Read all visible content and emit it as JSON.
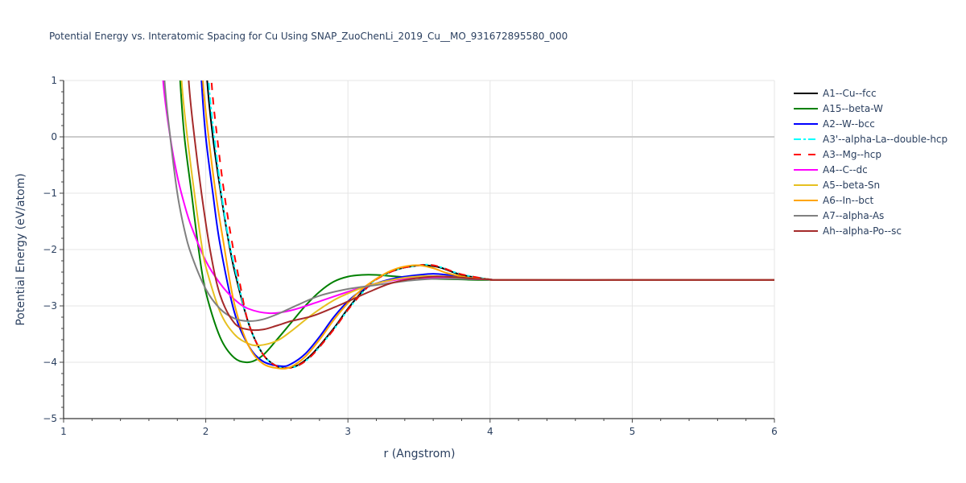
{
  "title": "Potential Energy vs. Interatomic Spacing for Cu Using SNAP_ZuoChenLi_2019_Cu__MO_931672895580_000",
  "chart_data": {
    "type": "line",
    "title": "Potential Energy vs. Interatomic Spacing for Cu Using SNAP_ZuoChenLi_2019_Cu__MO_931672895580_000",
    "xlabel": "r (Angstrom)",
    "ylabel": "Potential Energy (eV/atom)",
    "xlim": [
      1,
      6
    ],
    "ylim": [
      -5,
      1
    ],
    "xticks": [
      "1",
      "2",
      "3",
      "4",
      "5",
      "6"
    ],
    "yticks": [
      "1",
      "0",
      "−1",
      "−2",
      "−3",
      "−4",
      "−5"
    ],
    "grid": true,
    "legend_position": "right",
    "series": [
      {
        "name": "A1--Cu--fcc",
        "color": "#000000",
        "dash": "solid",
        "x": [
          2.01,
          2.05,
          2.1,
          2.15,
          2.2,
          2.3,
          2.4,
          2.5,
          2.57,
          2.65,
          2.75,
          2.9,
          3.0,
          3.1,
          3.2,
          3.35,
          3.5,
          3.55,
          3.65,
          3.8,
          4.0,
          4.1,
          5.0,
          6.0
        ],
        "y": [
          1.0,
          0.0,
          -0.9,
          -1.7,
          -2.35,
          -3.3,
          -3.85,
          -4.07,
          -4.1,
          -4.05,
          -3.85,
          -3.4,
          -3.05,
          -2.75,
          -2.52,
          -2.35,
          -2.28,
          -2.28,
          -2.32,
          -2.45,
          -2.53,
          -2.54,
          -2.54,
          -2.54
        ]
      },
      {
        "name": "A15--beta-W",
        "color": "#008000",
        "dash": "solid",
        "x": [
          1.82,
          1.85,
          1.9,
          1.95,
          2.0,
          2.1,
          2.2,
          2.3,
          2.4,
          2.5,
          2.6,
          2.7,
          2.8,
          2.9,
          3.0,
          3.1,
          3.2,
          3.3,
          3.45,
          3.6,
          3.8,
          4.0,
          5.0,
          6.0
        ],
        "y": [
          1.0,
          0.0,
          -1.0,
          -2.0,
          -2.75,
          -3.55,
          -3.92,
          -4.0,
          -3.88,
          -3.6,
          -3.3,
          -3.0,
          -2.75,
          -2.57,
          -2.48,
          -2.45,
          -2.45,
          -2.47,
          -2.5,
          -2.52,
          -2.53,
          -2.54,
          -2.54,
          -2.54
        ]
      },
      {
        "name": "A2--W--bcc",
        "color": "#0000ff",
        "dash": "solid",
        "x": [
          1.97,
          2.0,
          2.05,
          2.1,
          2.2,
          2.3,
          2.4,
          2.53,
          2.6,
          2.7,
          2.8,
          2.9,
          3.0,
          3.1,
          3.2,
          3.35,
          3.5,
          3.6,
          3.7,
          3.85,
          4.0,
          4.1,
          5.0,
          6.0
        ],
        "y": [
          1.0,
          0.0,
          -1.0,
          -1.9,
          -3.1,
          -3.7,
          -3.98,
          -4.07,
          -4.03,
          -3.85,
          -3.55,
          -3.2,
          -2.92,
          -2.72,
          -2.6,
          -2.5,
          -2.45,
          -2.43,
          -2.45,
          -2.5,
          -2.53,
          -2.54,
          -2.54,
          -2.54
        ]
      },
      {
        "name": "A3'--alpha-La--double-hcp",
        "color": "#00ffff",
        "dash": "dashdot",
        "x": [
          2.02,
          2.06,
          2.11,
          2.16,
          2.22,
          2.3,
          2.4,
          2.5,
          2.57,
          2.65,
          2.75,
          2.9,
          3.0,
          3.1,
          3.2,
          3.35,
          3.5,
          3.57,
          3.65,
          3.8,
          4.0,
          4.1,
          5.0,
          6.0
        ],
        "y": [
          1.0,
          0.0,
          -1.0,
          -1.8,
          -2.5,
          -3.3,
          -3.85,
          -4.07,
          -4.1,
          -4.06,
          -3.87,
          -3.42,
          -3.07,
          -2.77,
          -2.53,
          -2.35,
          -2.28,
          -2.27,
          -2.31,
          -2.44,
          -2.53,
          -2.54,
          -2.54,
          -2.54
        ]
      },
      {
        "name": "A3--Mg--hcp",
        "color": "#ff0000",
        "dash": "dash",
        "x": [
          2.04,
          2.08,
          2.13,
          2.18,
          2.24,
          2.3,
          2.4,
          2.5,
          2.58,
          2.65,
          2.75,
          2.9,
          3.0,
          3.1,
          3.2,
          3.35,
          3.5,
          3.57,
          3.65,
          3.8,
          4.0,
          4.1,
          5.0,
          6.0
        ],
        "y": [
          1.0,
          0.0,
          -1.0,
          -1.8,
          -2.6,
          -3.3,
          -3.85,
          -4.07,
          -4.1,
          -4.06,
          -3.87,
          -3.42,
          -3.07,
          -2.77,
          -2.53,
          -2.35,
          -2.28,
          -2.27,
          -2.31,
          -2.44,
          -2.53,
          -2.54,
          -2.54,
          -2.54
        ]
      },
      {
        "name": "A4--C--dc",
        "color": "#ff00ff",
        "dash": "solid",
        "x": [
          1.7,
          1.75,
          1.8,
          1.85,
          1.9,
          2.0,
          2.1,
          2.2,
          2.3,
          2.45,
          2.6,
          2.8,
          3.0,
          3.2,
          3.4,
          3.6,
          3.8,
          4.0,
          4.1,
          5.0,
          6.0
        ],
        "y": [
          1.0,
          0.0,
          -0.7,
          -1.2,
          -1.6,
          -2.2,
          -2.6,
          -2.88,
          -3.05,
          -3.13,
          -3.08,
          -2.92,
          -2.75,
          -2.6,
          -2.52,
          -2.5,
          -2.52,
          -2.53,
          -2.54,
          -2.54,
          -2.54
        ]
      },
      {
        "name": "A5--beta-Sn",
        "color": "#e6c020",
        "dash": "solid",
        "x": [
          1.83,
          1.87,
          1.92,
          1.97,
          2.0,
          2.1,
          2.2,
          2.3,
          2.38,
          2.5,
          2.6,
          2.75,
          2.9,
          3.0,
          3.1,
          3.25,
          3.4,
          3.55,
          3.7,
          3.85,
          4.0,
          4.1,
          5.0,
          6.0
        ],
        "y": [
          1.0,
          0.0,
          -1.0,
          -1.9,
          -2.3,
          -3.1,
          -3.5,
          -3.67,
          -3.7,
          -3.62,
          -3.45,
          -3.15,
          -2.9,
          -2.78,
          -2.68,
          -2.57,
          -2.5,
          -2.47,
          -2.48,
          -2.51,
          -2.53,
          -2.54,
          -2.54,
          -2.54
        ]
      },
      {
        "name": "A6--In--bct",
        "color": "#ffa500",
        "dash": "solid",
        "x": [
          1.98,
          2.02,
          2.07,
          2.12,
          2.2,
          2.3,
          2.4,
          2.52,
          2.6,
          2.7,
          2.8,
          2.9,
          3.0,
          3.1,
          3.2,
          3.3,
          3.4,
          3.5,
          3.6,
          3.7,
          3.85,
          4.0,
          4.1,
          5.0,
          6.0
        ],
        "y": [
          1.0,
          0.0,
          -1.0,
          -1.8,
          -2.95,
          -3.7,
          -4.02,
          -4.11,
          -4.08,
          -3.9,
          -3.6,
          -3.25,
          -2.95,
          -2.7,
          -2.52,
          -2.38,
          -2.3,
          -2.28,
          -2.33,
          -2.42,
          -2.5,
          -2.53,
          -2.54,
          -2.54,
          -2.54
        ]
      },
      {
        "name": "A7--alpha-As",
        "color": "#808080",
        "dash": "solid",
        "x": [
          1.71,
          1.75,
          1.8,
          1.85,
          1.9,
          2.0,
          2.1,
          2.2,
          2.3,
          2.4,
          2.5,
          2.65,
          2.8,
          3.0,
          3.2,
          3.4,
          3.6,
          3.8,
          4.0,
          4.1,
          5.0,
          6.0
        ],
        "y": [
          1.0,
          0.0,
          -1.0,
          -1.65,
          -2.1,
          -2.7,
          -3.05,
          -3.22,
          -3.27,
          -3.24,
          -3.15,
          -2.98,
          -2.82,
          -2.7,
          -2.63,
          -2.56,
          -2.52,
          -2.52,
          -2.53,
          -2.54,
          -2.54,
          -2.54
        ]
      },
      {
        "name": "Ah--alpha-Po--sc",
        "color": "#a52a2a",
        "dash": "solid",
        "x": [
          1.88,
          1.92,
          1.97,
          2.03,
          2.1,
          2.2,
          2.3,
          2.4,
          2.5,
          2.6,
          2.75,
          2.9,
          3.0,
          3.15,
          3.3,
          3.45,
          3.6,
          3.75,
          3.9,
          4.0,
          4.1,
          5.0,
          6.0
        ],
        "y": [
          1.0,
          0.0,
          -1.0,
          -2.0,
          -2.8,
          -3.3,
          -3.42,
          -3.42,
          -3.35,
          -3.27,
          -3.18,
          -3.03,
          -2.92,
          -2.75,
          -2.6,
          -2.52,
          -2.48,
          -2.49,
          -2.52,
          -2.53,
          -2.54,
          -2.54,
          -2.54
        ]
      }
    ]
  }
}
